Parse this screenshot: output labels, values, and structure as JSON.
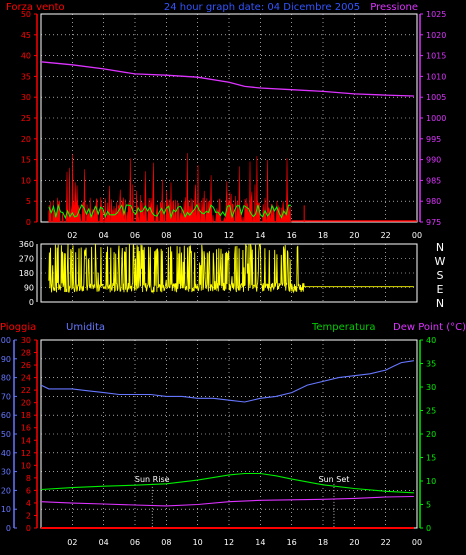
{
  "header": {
    "left": "Forza vento",
    "center": "24 hour graph date: 04 Dicembre 2005",
    "right": "Pressione"
  },
  "colors": {
    "wind": "#ff0000",
    "gust": "#00ff00",
    "pressure": "#dd33ff",
    "direction": "#ffff00",
    "humidity": "#6677ff",
    "temperature": "#00ee00",
    "dewpoint": "#dd33ff",
    "rain": "#ff0000",
    "grid": "#ffffff",
    "text_blue": "#3355ff",
    "text_green": "#00cc00"
  },
  "chart_data": [
    {
      "type": "line",
      "x_ticks": [
        "02",
        "04",
        "06",
        "08",
        "10",
        "12",
        "14",
        "16",
        "18",
        "20",
        "22",
        "00"
      ],
      "y_left": {
        "label": "Forza vento",
        "ticks": [
          0,
          5,
          10,
          15,
          20,
          25,
          30,
          35,
          40,
          45,
          50
        ],
        "ylim": [
          0,
          50
        ]
      },
      "y_right": {
        "label": "Pressione",
        "ticks": [
          975,
          980,
          985,
          990,
          995,
          1000,
          1005,
          1010,
          1015,
          1020,
          1025
        ],
        "ylim": [
          975,
          1025
        ]
      },
      "grid": true,
      "series": [
        {
          "name": "Pressione",
          "axis": "right",
          "x": [
            0,
            2,
            4,
            6,
            8,
            10,
            12,
            13,
            14,
            16,
            18,
            20,
            22,
            23.8
          ],
          "y": [
            1013.5,
            1012.8,
            1011.8,
            1010.6,
            1010.3,
            1009.8,
            1008.6,
            1007.6,
            1007.2,
            1006.8,
            1006.4,
            1005.8,
            1005.5,
            1005.3
          ]
        }
      ],
      "wind_bars": {
        "x_range": [
          0.5,
          16
        ],
        "max_gust": 17,
        "typical": 6
      }
    },
    {
      "type": "line",
      "y_left": {
        "ticks": [
          0,
          90,
          180,
          270,
          360
        ],
        "ylim": [
          0,
          360
        ]
      },
      "y_right": {
        "ticks": [
          "N",
          "W",
          "S",
          "E",
          "N"
        ]
      },
      "series": [
        {
          "name": "direction",
          "x_range": [
            0.5,
            16.8
          ],
          "after_value": 95,
          "after_range": [
            16.8,
            23.8
          ]
        }
      ]
    },
    {
      "type": "line",
      "x_ticks": [
        "02",
        "04",
        "06",
        "08",
        "10",
        "12",
        "14",
        "16",
        "18",
        "20",
        "22",
        "00"
      ],
      "labels": {
        "rain": "Pioggia",
        "humidity": "Umidita",
        "temperature": "Temperatura",
        "dewpoint": "Dew Point (°C)"
      },
      "y_humidity": {
        "ticks": [
          0,
          10,
          20,
          30,
          40,
          50,
          60,
          70,
          80,
          90,
          100
        ],
        "ylim": [
          0,
          100
        ]
      },
      "y_rain": {
        "ticks": [
          0,
          2,
          4,
          6,
          8,
          10,
          12,
          14,
          16,
          18,
          20,
          22,
          24,
          26,
          28,
          30
        ],
        "ylim": [
          0,
          30
        ]
      },
      "y_temp": {
        "ticks": [
          0,
          5,
          10,
          15,
          20,
          25,
          30,
          35,
          40
        ],
        "ylim": [
          0,
          40
        ]
      },
      "grid": true,
      "annotations": [
        {
          "text": "Sun Rise",
          "x": 7.1
        },
        {
          "text": "Sun Set",
          "x": 18.7
        }
      ],
      "series": [
        {
          "name": "Umidita",
          "axis": "humidity",
          "x": [
            0,
            0.5,
            1,
            2,
            3,
            4,
            5,
            6,
            7,
            8,
            9,
            10,
            11,
            12,
            13,
            14,
            15,
            16,
            16.5,
            17,
            18,
            19,
            20,
            21,
            22,
            22.5,
            23,
            23.8
          ],
          "y": [
            76,
            74,
            74,
            74,
            73,
            72,
            71,
            71,
            71,
            70,
            70,
            69,
            69,
            68,
            67,
            69,
            70,
            72,
            74,
            76,
            78,
            80,
            81,
            82,
            84,
            86,
            88,
            89
          ]
        },
        {
          "name": "Temperatura",
          "axis": "temp",
          "x": [
            0,
            2,
            4,
            6,
            8,
            10,
            12,
            13,
            14,
            15,
            16,
            18,
            20,
            22,
            23.8
          ],
          "y": [
            8.2,
            8.6,
            8.9,
            9.1,
            9.4,
            10.2,
            11.3,
            11.6,
            11.6,
            11.1,
            10.4,
            9.2,
            8.4,
            7.8,
            7.5
          ]
        },
        {
          "name": "Dew Point",
          "axis": "temp",
          "x": [
            0,
            2,
            4,
            6,
            8,
            10,
            12,
            14,
            16,
            18,
            20,
            22,
            23.8
          ],
          "y": [
            5.6,
            5.3,
            5.1,
            4.9,
            4.7,
            5.0,
            5.6,
            5.9,
            6.0,
            6.1,
            6.3,
            6.6,
            6.7
          ]
        },
        {
          "name": "Pioggia",
          "axis": "rain",
          "x": [
            0,
            23.8
          ],
          "y": [
            0,
            0
          ]
        }
      ]
    }
  ]
}
